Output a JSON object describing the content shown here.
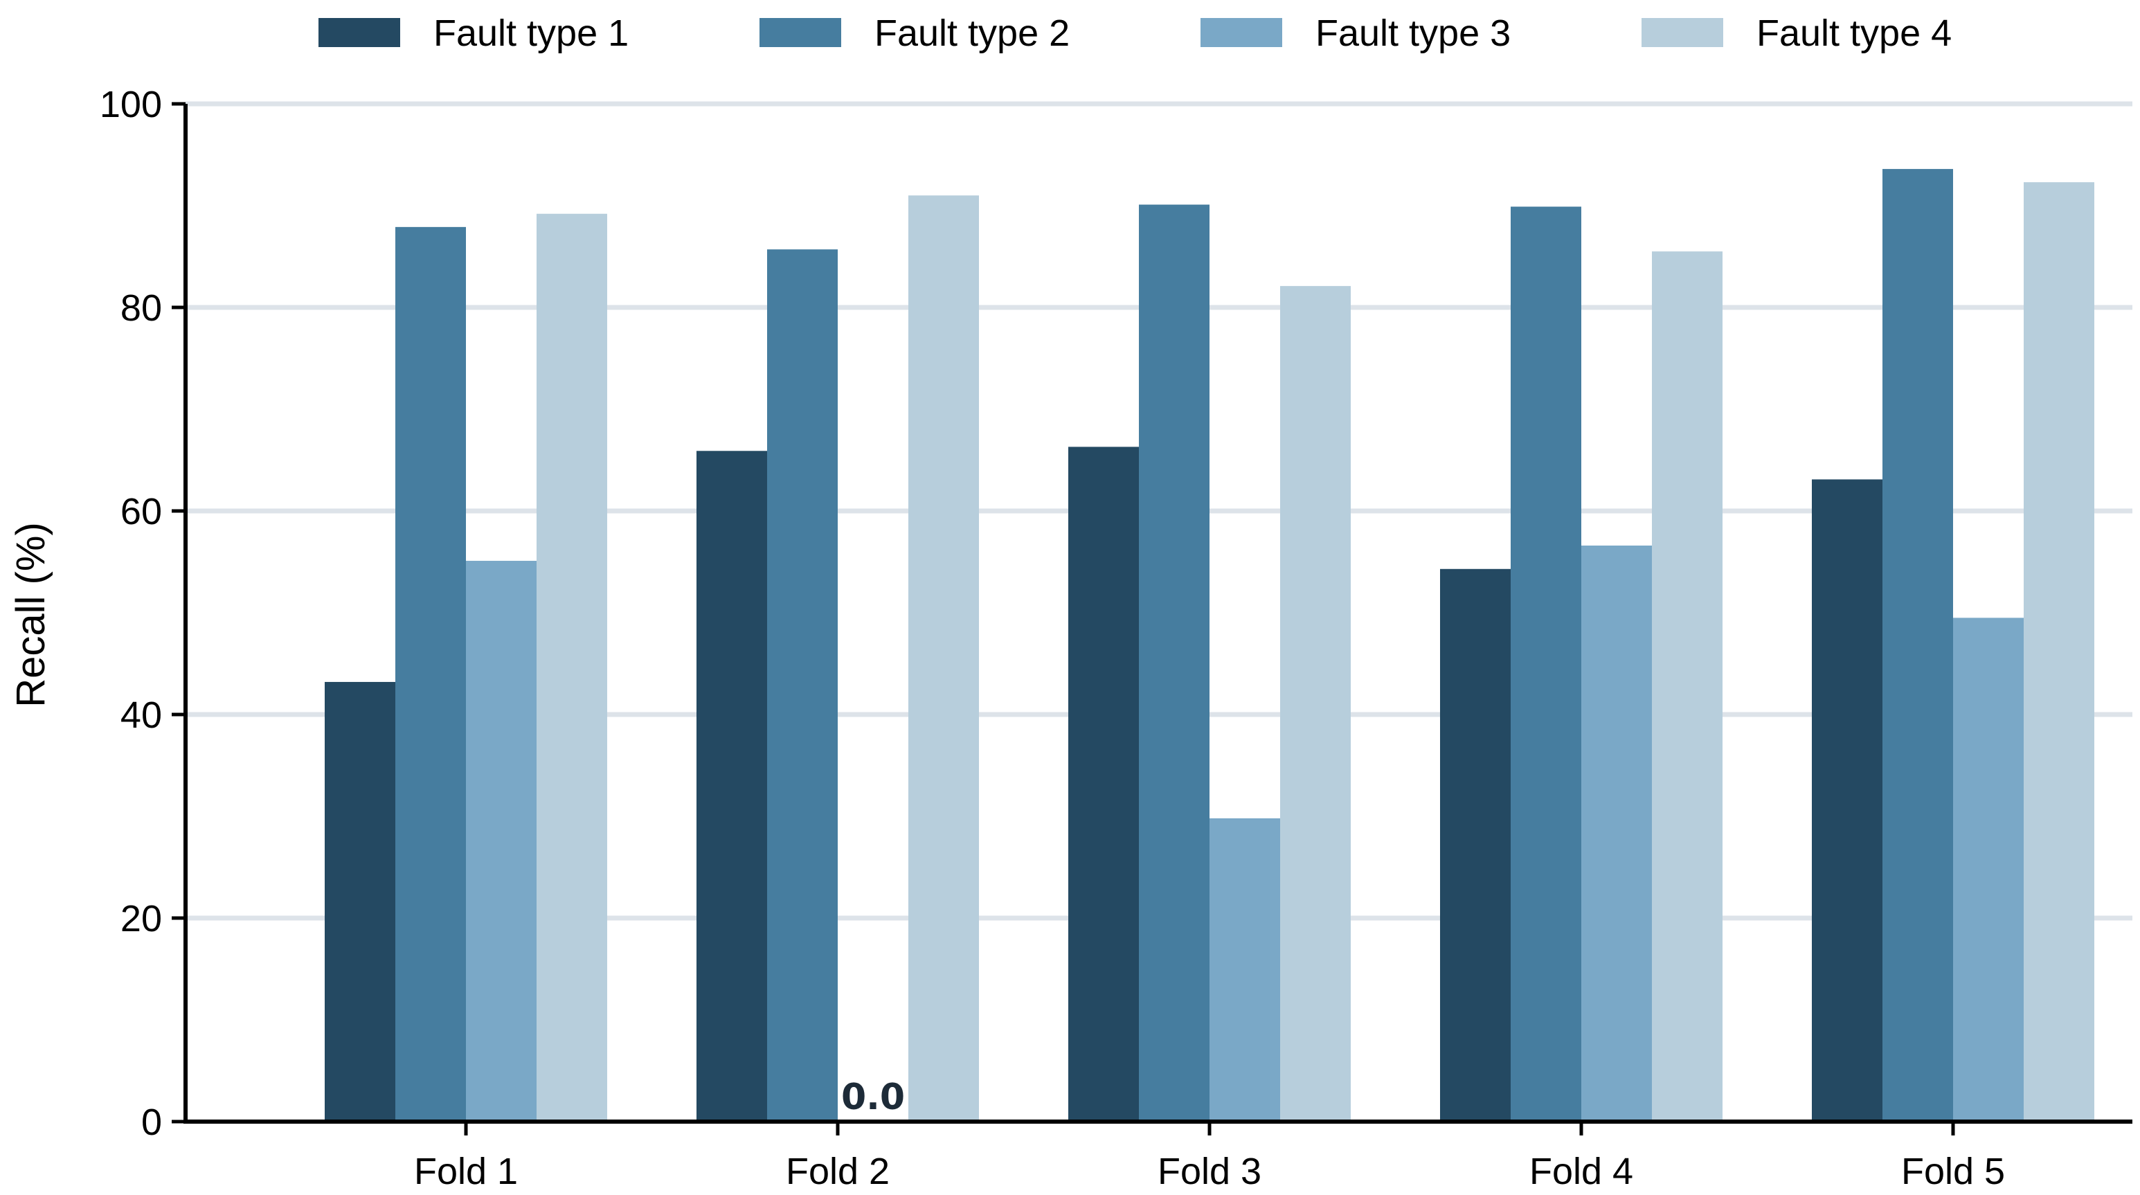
{
  "chart_data": {
    "type": "bar",
    "title": "",
    "xlabel": "",
    "ylabel": "Recall (%)",
    "ylim": [
      0,
      100
    ],
    "yticks": [
      0,
      20,
      40,
      60,
      80,
      100
    ],
    "grid": "horizontal",
    "legend_position": "top-center",
    "categories": [
      "Fold 1",
      "Fold 2",
      "Fold 3",
      "Fold 4",
      "Fold 5"
    ],
    "series": [
      {
        "name": "Fault type 1",
        "color": "#244962",
        "values": [
          43.2,
          65.9,
          66.3,
          54.3,
          63.1
        ]
      },
      {
        "name": "Fault type 2",
        "color": "#467d9f",
        "values": [
          87.9,
          85.7,
          90.1,
          89.9,
          93.6
        ]
      },
      {
        "name": "Fault type 3",
        "color": "#7aa8c7",
        "values": [
          55.1,
          0.0,
          29.8,
          56.6,
          49.5
        ]
      },
      {
        "name": "Fault type 4",
        "color": "#b7cedc",
        "values": [
          89.2,
          91.0,
          82.1,
          85.5,
          92.3
        ]
      }
    ],
    "annotations": [
      {
        "series_index": 2,
        "category_index": 1,
        "text": "0.0"
      }
    ],
    "colors": {
      "grid": "#dde3e9",
      "axis": "#000000"
    }
  }
}
